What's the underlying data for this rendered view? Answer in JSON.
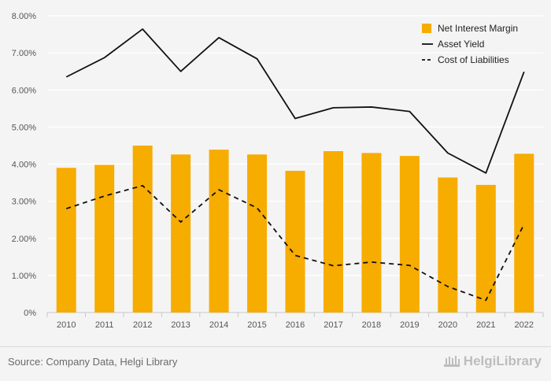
{
  "chart_data": {
    "type": "bar+line",
    "categories": [
      "2010",
      "2011",
      "2012",
      "2013",
      "2014",
      "2015",
      "2016",
      "2017",
      "2018",
      "2019",
      "2020",
      "2021",
      "2022"
    ],
    "y_ticks": [
      "0%",
      "1.00%",
      "2.00%",
      "3.00%",
      "4.00%",
      "5.00%",
      "6.00%",
      "7.00%",
      "8.00%"
    ],
    "ylim": [
      0,
      8
    ],
    "series": [
      {
        "name": "Net Interest Margin",
        "kind": "bar",
        "color": "#f7ac00",
        "values": [
          3.9,
          3.98,
          4.5,
          4.26,
          4.39,
          4.26,
          3.82,
          4.35,
          4.3,
          4.22,
          3.64,
          3.44,
          4.28
        ]
      },
      {
        "name": "Asset Yield",
        "kind": "line",
        "style": "solid",
        "color": "#111111",
        "values": [
          6.35,
          6.87,
          7.64,
          6.5,
          7.41,
          6.84,
          5.23,
          5.52,
          5.54,
          5.42,
          4.3,
          3.76,
          6.49
        ]
      },
      {
        "name": "Cost of Liabilities",
        "kind": "line",
        "style": "dashed",
        "color": "#111111",
        "values": [
          2.8,
          3.14,
          3.42,
          2.44,
          3.31,
          2.82,
          1.54,
          1.26,
          1.36,
          1.27,
          0.7,
          0.33,
          2.38
        ]
      }
    ],
    "legend_position": "top-right"
  },
  "footer": {
    "source": "Source: Company Data, Helgi Library",
    "brand": "HelgiLibrary"
  }
}
